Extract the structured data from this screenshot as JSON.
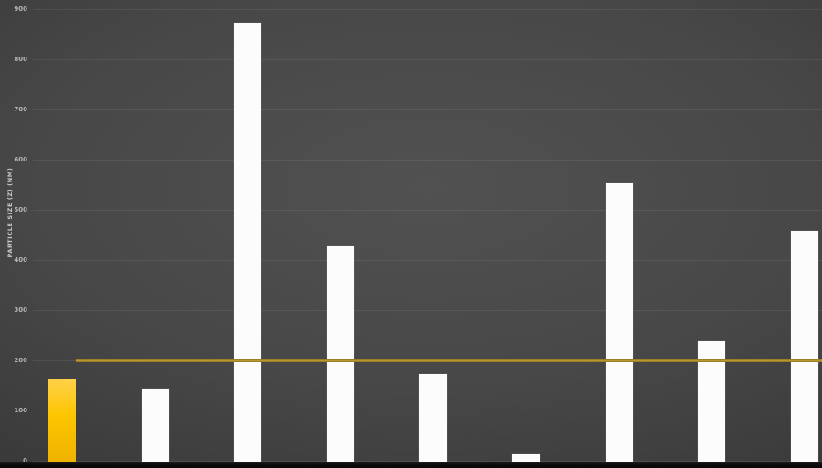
{
  "chart_data": {
    "type": "bar",
    "title": "",
    "ylabel": "PARTICLE SIZE (Z) (NM)",
    "xlabel": "",
    "ylim": [
      0,
      900
    ],
    "ytick_interval": 100,
    "yticks": [
      "0",
      "100",
      "200",
      "300",
      "400",
      "500",
      "600",
      "700",
      "800",
      "900"
    ],
    "grid": "horizontal",
    "legend": "none",
    "categories": [
      "",
      "",
      "",
      "",
      "",
      "",
      "",
      "",
      ""
    ],
    "values": [
      165,
      145,
      875,
      430,
      175,
      15,
      555,
      240,
      460
    ],
    "highlighted_bar_index": 0,
    "reference_line": {
      "value": 200,
      "color": "#b2902c"
    }
  },
  "theme": {
    "background_center": "#515151",
    "background_edge": "#272727",
    "bar_default_color": "#fcfcfc",
    "bar_highlight_color": "#fdc500",
    "reference_line_color": "#b2902c",
    "gridline_color": "rgba(255,255,255,0.08)",
    "tick_label_color": "#b5b5b5",
    "axis_title_color": "#c9c9c9",
    "bottom_strip_color": "#0a0a0a"
  }
}
